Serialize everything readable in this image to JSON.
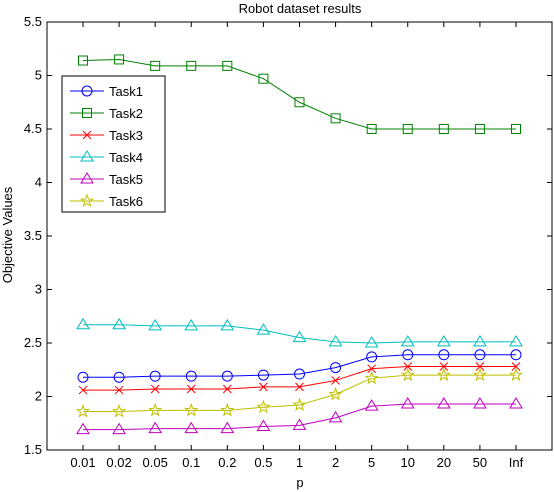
{
  "chart_data": {
    "type": "line",
    "title": "Robot dataset results",
    "xlabel": "p",
    "ylabel": "Objective Values",
    "categories": [
      "0.01",
      "0.02",
      "0.05",
      "0.1",
      "0.2",
      "0.5",
      "1",
      "2",
      "5",
      "10",
      "20",
      "50",
      "Inf"
    ],
    "ylim": [
      1.5,
      5.5
    ],
    "yticks": [
      "1.5",
      "2",
      "2.5",
      "3",
      "3.5",
      "4",
      "4.5",
      "5",
      "5.5"
    ],
    "ytick_values": [
      1.5,
      2,
      2.5,
      3,
      3.5,
      4,
      4.5,
      5,
      5.5
    ],
    "grid": false,
    "legend_position": "top-left",
    "series": [
      {
        "name": "Task1",
        "color": "#0000ff",
        "marker": "circle",
        "values": [
          2.18,
          2.18,
          2.19,
          2.19,
          2.19,
          2.2,
          2.21,
          2.27,
          2.37,
          2.39,
          2.39,
          2.39,
          2.39
        ]
      },
      {
        "name": "Task2",
        "color": "#008000",
        "marker": "square",
        "values": [
          5.14,
          5.15,
          5.09,
          5.09,
          5.09,
          4.97,
          4.75,
          4.6,
          4.5,
          4.5,
          4.5,
          4.5,
          4.5
        ]
      },
      {
        "name": "Task3",
        "color": "#ff0000",
        "marker": "x",
        "values": [
          2.06,
          2.06,
          2.07,
          2.07,
          2.07,
          2.09,
          2.09,
          2.15,
          2.26,
          2.28,
          2.28,
          2.28,
          2.28
        ]
      },
      {
        "name": "Task4",
        "color": "#00bfbf",
        "marker": "triangle",
        "values": [
          2.67,
          2.67,
          2.66,
          2.66,
          2.66,
          2.62,
          2.55,
          2.51,
          2.5,
          2.51,
          2.51,
          2.51,
          2.51
        ]
      },
      {
        "name": "Task5",
        "color": "#bf00bf",
        "marker": "triangle",
        "values": [
          1.69,
          1.69,
          1.7,
          1.7,
          1.7,
          1.72,
          1.73,
          1.8,
          1.91,
          1.93,
          1.93,
          1.93,
          1.93
        ]
      },
      {
        "name": "Task6",
        "color": "#bfbf00",
        "marker": "star",
        "values": [
          1.86,
          1.86,
          1.87,
          1.87,
          1.87,
          1.9,
          1.92,
          2.02,
          2.17,
          2.2,
          2.2,
          2.2,
          2.2
        ]
      }
    ]
  }
}
